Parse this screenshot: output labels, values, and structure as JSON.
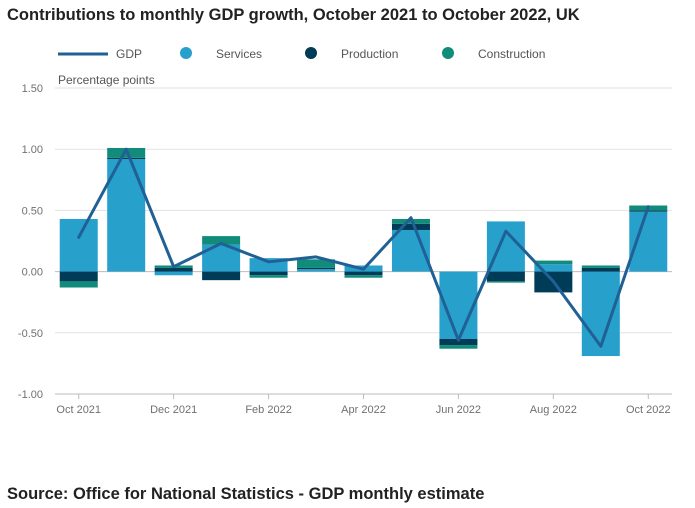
{
  "title": "Contributions to monthly GDP growth, October 2021 to October 2022, UK",
  "source": "Source: Office for National Statistics - GDP monthly estimate",
  "chart_data": {
    "type": "bar",
    "stacked": true,
    "y_unit_label": "Percentage points",
    "ylim": [
      -1.0,
      1.5
    ],
    "y_ticks": [
      "1.50",
      "1.00",
      "0.50",
      "0.00",
      "-0.50",
      "-1.00"
    ],
    "y_tick_values": [
      1.5,
      1.0,
      0.5,
      0.0,
      -0.5,
      -1.0
    ],
    "grid": true,
    "legend_position": "top",
    "categories": [
      "Oct 2021",
      "Nov 2021",
      "Dec 2021",
      "Jan 2022",
      "Feb 2022",
      "Mar 2022",
      "Apr 2022",
      "May 2022",
      "Jun 2022",
      "Jul 2022",
      "Aug 2022",
      "Sep 2022",
      "Oct 2022"
    ],
    "x_tick_labels": [
      "Oct 2021",
      "Dec 2021",
      "Feb 2022",
      "Apr 2022",
      "Jun 2022",
      "Aug 2022",
      "Oct 2022"
    ],
    "x_tick_indices": [
      0,
      2,
      4,
      6,
      8,
      10,
      12
    ],
    "series": [
      {
        "name": "GDP",
        "kind": "line",
        "color": "#206095",
        "values": [
          0.28,
          1.0,
          0.04,
          0.23,
          0.08,
          0.12,
          0.02,
          0.44,
          -0.56,
          0.33,
          -0.08,
          -0.61,
          0.53
        ]
      },
      {
        "name": "Services",
        "kind": "bar",
        "color": "#27a0cc",
        "values": [
          0.43,
          0.92,
          -0.03,
          0.22,
          0.11,
          0.02,
          0.05,
          0.34,
          -0.55,
          0.41,
          0.06,
          -0.69,
          0.49
        ]
      },
      {
        "name": "Production",
        "kind": "bar",
        "color": "#003c57",
        "values": [
          -0.08,
          0.01,
          0.03,
          -0.07,
          -0.03,
          0.01,
          -0.03,
          0.05,
          -0.05,
          -0.08,
          -0.17,
          0.03,
          0.01
        ]
      },
      {
        "name": "Construction",
        "kind": "bar",
        "color": "#118c7b",
        "values": [
          -0.05,
          0.08,
          0.02,
          0.07,
          -0.02,
          0.07,
          -0.02,
          0.04,
          -0.03,
          -0.01,
          0.03,
          0.02,
          0.04
        ]
      }
    ]
  }
}
